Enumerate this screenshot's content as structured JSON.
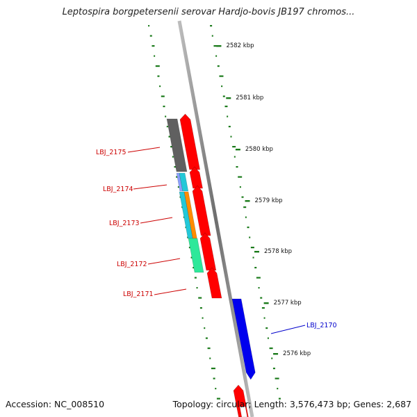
{
  "header": {
    "title": "Leptospira borgpetersenii serovar Hardjo-bovis JB197 chromos..."
  },
  "footer": {
    "accession": "Accession: NC_008510",
    "summary": "Topology: circular; Length: 3,576,473 bp; Genes: 2,687"
  },
  "scale_labels": [
    "2582 kbp",
    "2581 kbp",
    "2580 kbp",
    "2579 kbp",
    "2578 kbp",
    "2577 kbp",
    "2576 kbp"
  ],
  "genes": [
    {
      "label": "LBJ_2175",
      "color": "#cc0000",
      "strand": "minus"
    },
    {
      "label": "LBJ_2174",
      "color": "#cc0000",
      "strand": "minus"
    },
    {
      "label": "LBJ_2173",
      "color": "#cc0000",
      "strand": "minus"
    },
    {
      "label": "LBJ_2172",
      "color": "#cc0000",
      "strand": "minus"
    },
    {
      "label": "LBJ_2171",
      "color": "#cc0000",
      "strand": "minus"
    },
    {
      "label": "LBJ_2170",
      "color": "#0000cc",
      "strand": "plus"
    }
  ],
  "colors": {
    "backbone": "#808080",
    "cds_minus": "#ff0000",
    "cds_plus": "#0000ee",
    "gc_dots": "#1a7a1a",
    "cog_gray": "#606060",
    "cog_cyan": "#22c8d8",
    "cog_orange": "#ff8c00",
    "cog_green": "#2ee89a"
  }
}
